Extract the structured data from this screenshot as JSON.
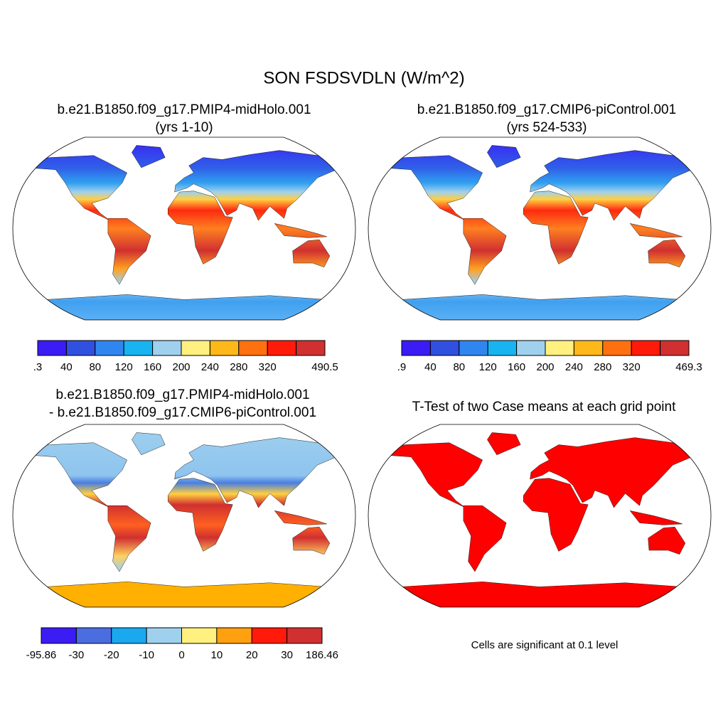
{
  "title": "SON FSDSVDLN (W/m^2)",
  "panels": [
    {
      "title_lines": [
        "b.e21.B1850.f09_g17.PMIP4-midHolo.001",
        "(yrs 1-10)"
      ],
      "colorbar": {
        "colors": [
          "#3b1cf5",
          "#3050e0",
          "#2f86f0",
          "#18b4f2",
          "#9fd0ee",
          "#fff080",
          "#ffb81a",
          "#ff7010",
          "#ff1a0a",
          "#d03030"
        ],
        "labels": [
          ".3",
          "40",
          "80",
          "120",
          "160",
          "200",
          "240",
          "280",
          "320",
          "490.5"
        ]
      }
    },
    {
      "title_lines": [
        "b.e21.B1850.f09_g17.CMIP6-piControl.001",
        "(yrs 524-533)"
      ],
      "colorbar": {
        "colors": [
          "#3b1cf5",
          "#3050e0",
          "#2f86f0",
          "#18b4f2",
          "#9fd0ee",
          "#fff080",
          "#ffb81a",
          "#ff7010",
          "#ff1a0a",
          "#d03030"
        ],
        "labels": [
          ".9",
          "40",
          "80",
          "120",
          "160",
          "200",
          "240",
          "280",
          "320",
          "469.3"
        ]
      }
    },
    {
      "title_lines": [
        "b.e21.B1850.f09_g17.PMIP4-midHolo.001",
        "- b.e21.B1850.f09_g17.CMIP6-piControl.001"
      ],
      "colorbar": {
        "colors": [
          "#3b1cf5",
          "#4a6ee0",
          "#1aa8ef",
          "#9fd0ee",
          "#fff080",
          "#ffa010",
          "#ff1a0a",
          "#d03030"
        ],
        "labels": [
          "-95.86",
          "-30",
          "-20",
          "-10",
          "0",
          "10",
          "20",
          "30",
          "186.46"
        ]
      }
    },
    {
      "title_lines": [
        "T-Test of two Case means at each grid point"
      ]
    }
  ],
  "note": "Cells are significant at 0.1 level"
}
